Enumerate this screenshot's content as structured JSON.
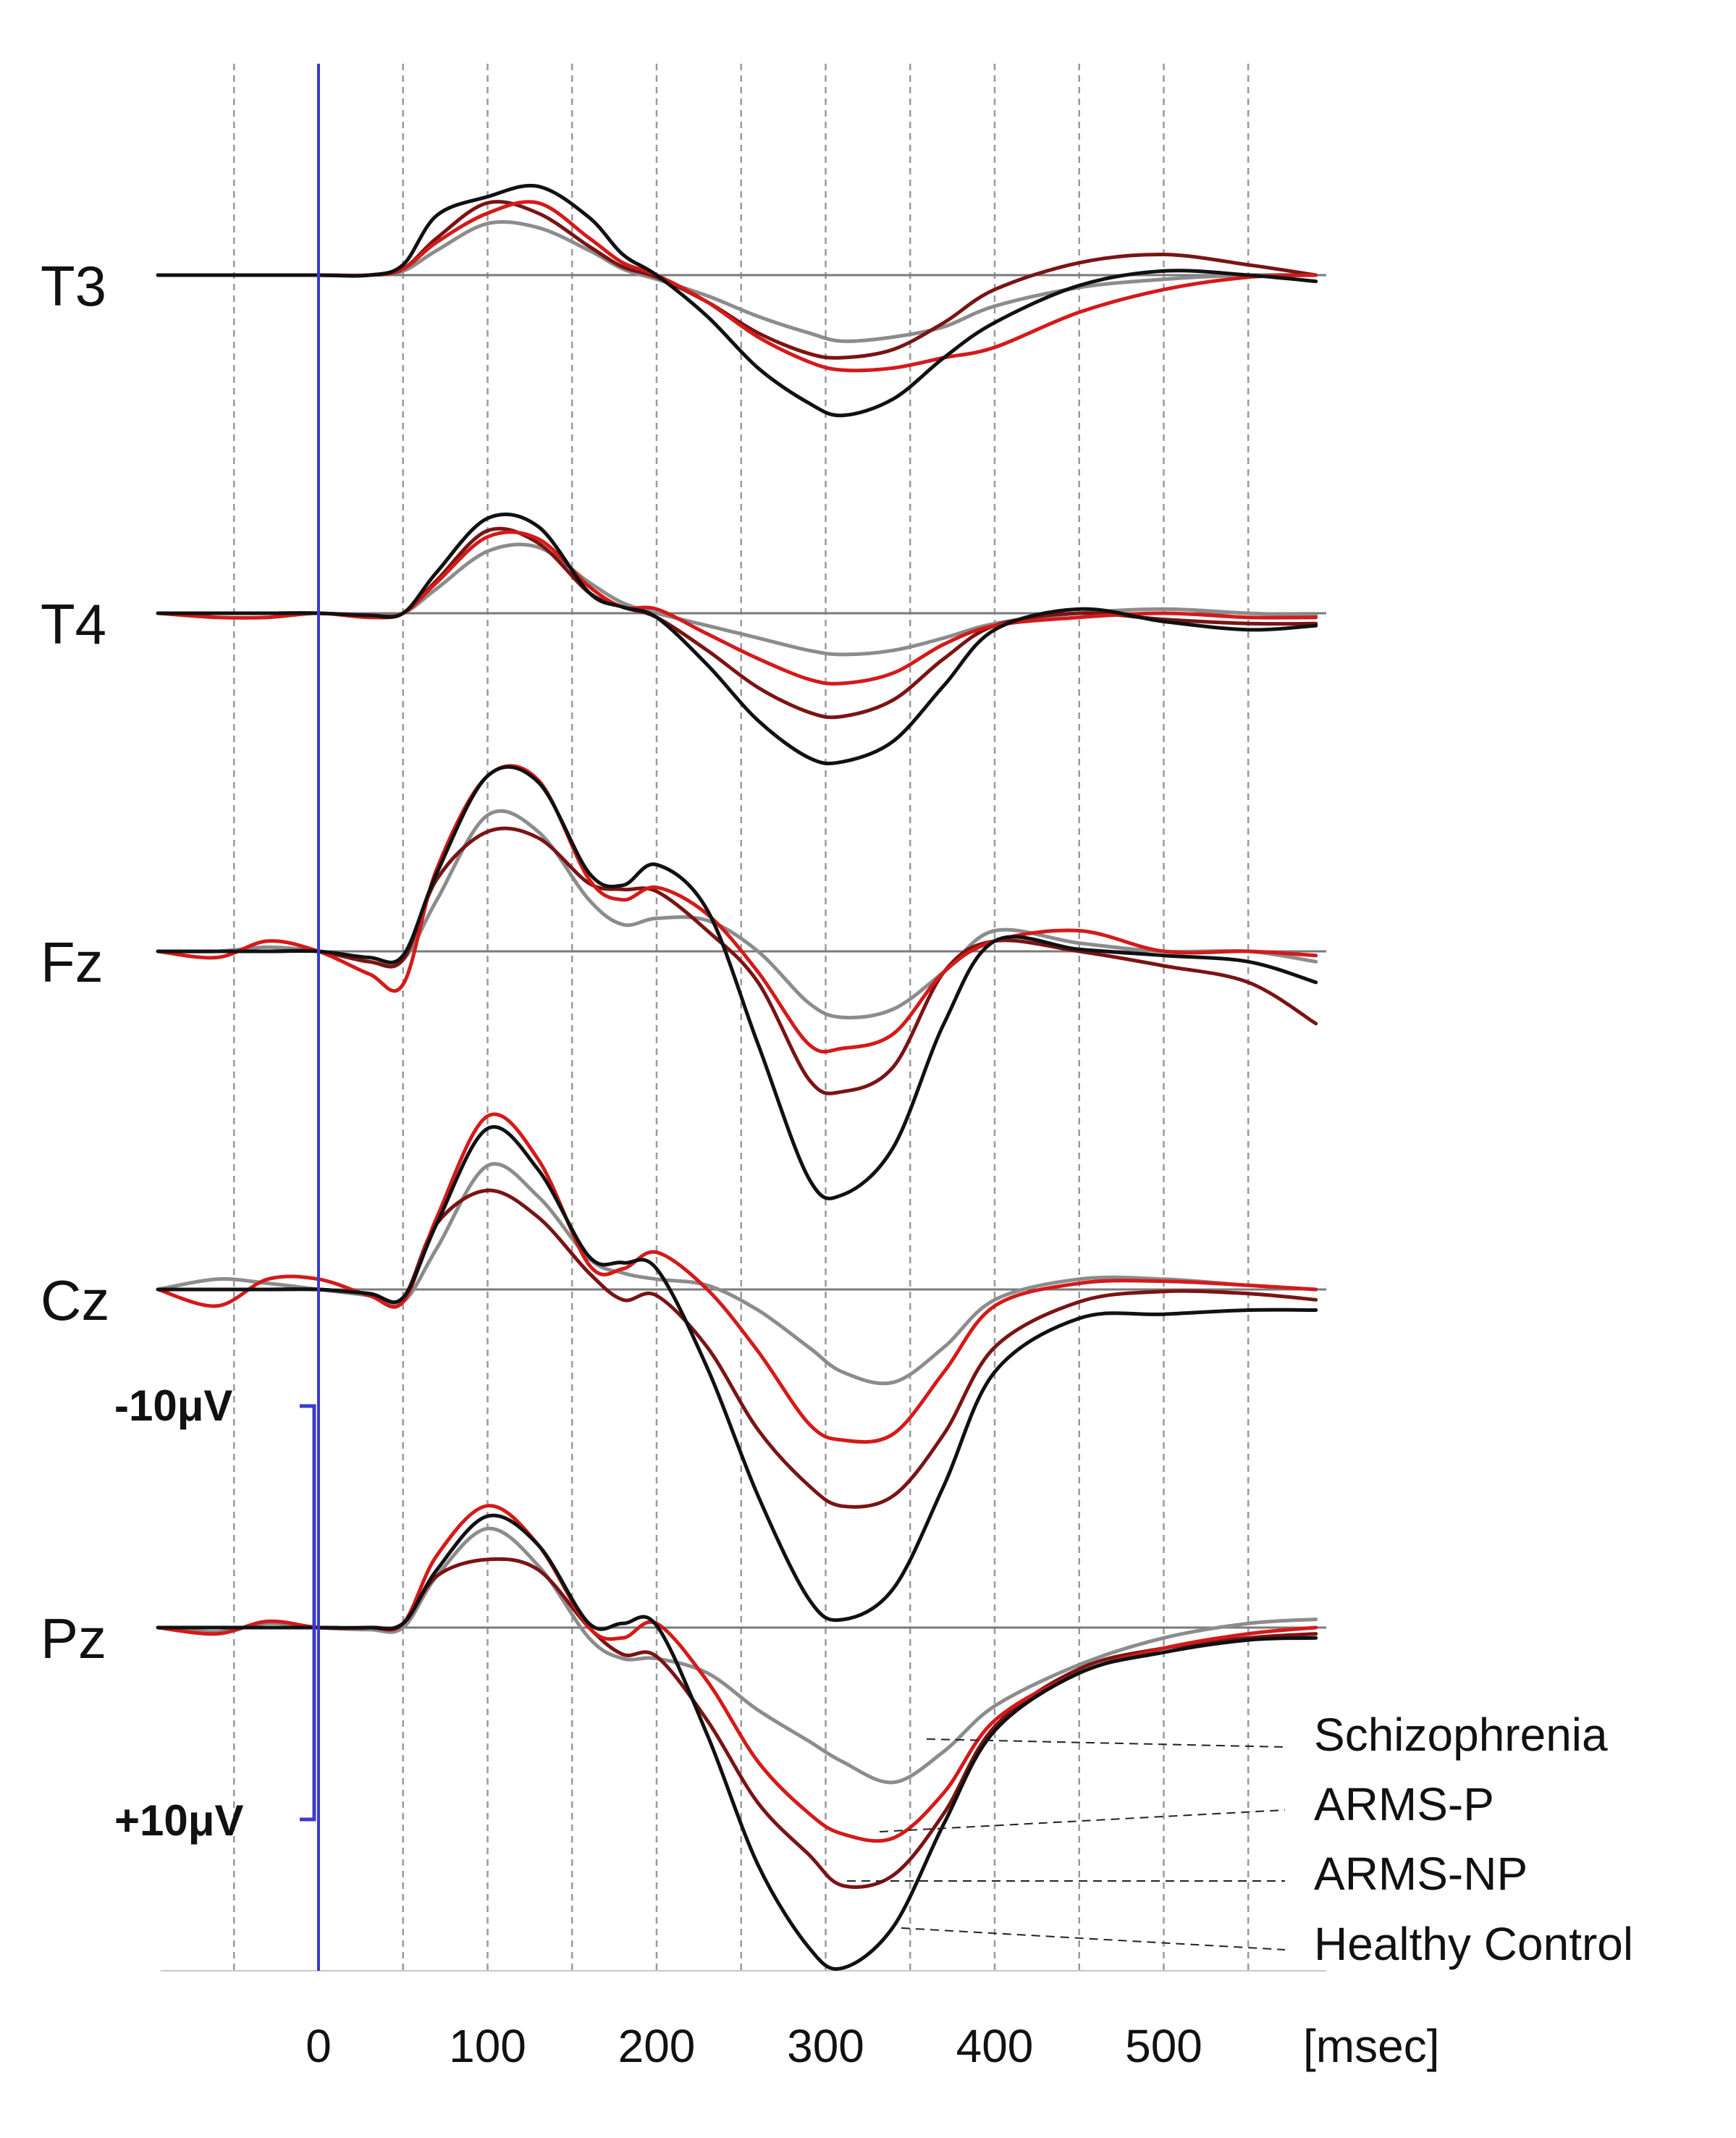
{
  "chart_data": {
    "type": "line",
    "x_unit_label": "[msec]",
    "xlim": [
      -95,
      590
    ],
    "x_ticks": [
      0,
      100,
      200,
      300,
      400,
      500
    ],
    "x_tick_labels": [
      "0",
      "100",
      "200",
      "300",
      "400",
      "500"
    ],
    "grid_x": [
      -50,
      0,
      50,
      100,
      150,
      200,
      250,
      300,
      350,
      400,
      450,
      500,
      550
    ],
    "grid": "vertical dashed",
    "y_orientation": "negative up",
    "scale_bar": {
      "top_label": "-10μV",
      "bottom_label": "+10μV",
      "top_uv": -10,
      "bottom_uv": 10
    },
    "legend_position": "bottom-right",
    "colors": {
      "zero_marker": "#3a3ad0",
      "baseline": "#7a7a7a",
      "grid": "#9a9a9a"
    },
    "x": [
      -95,
      -60,
      -30,
      0,
      30,
      50,
      70,
      100,
      130,
      160,
      180,
      200,
      230,
      260,
      290,
      310,
      340,
      370,
      400,
      450,
      500,
      550,
      590
    ],
    "series": [
      {
        "name": "Schizophrenia",
        "color": "#8c8c8c"
      },
      {
        "name": "ARMS-P",
        "color": "#d41a1a"
      },
      {
        "name": "ARMS-NP",
        "color": "#7a1414"
      },
      {
        "name": "Healthy Control",
        "color": "#111111"
      }
    ],
    "channels": [
      {
        "label": "T3",
        "values": [
          [
            0,
            0,
            0,
            0,
            0,
            -0.2,
            -1.2,
            -2.5,
            -2.3,
            -1.2,
            -0.3,
            0.2,
            1.0,
            2.0,
            2.8,
            3.2,
            3.0,
            2.5,
            1.5,
            0.6,
            0.2,
            0.0,
            0.0
          ],
          [
            0,
            0,
            0,
            0,
            0,
            -0.3,
            -1.6,
            -3.0,
            -3.5,
            -1.8,
            -0.6,
            0.0,
            1.3,
            3.0,
            4.2,
            4.6,
            4.5,
            4.0,
            3.5,
            1.8,
            0.7,
            0.1,
            0.0
          ],
          [
            0,
            0,
            0,
            0,
            0,
            -0.3,
            -1.8,
            -3.5,
            -3.0,
            -1.4,
            -0.4,
            0.1,
            1.3,
            2.8,
            3.8,
            4.0,
            3.6,
            2.3,
            0.7,
            -0.6,
            -1.0,
            -0.5,
            0.0
          ],
          [
            0,
            0,
            0,
            0,
            0,
            -0.5,
            -2.9,
            -3.8,
            -4.3,
            -2.8,
            -1.0,
            0.0,
            2.0,
            4.5,
            6.2,
            6.8,
            6.0,
            4.0,
            2.3,
            0.5,
            -0.2,
            0.0,
            0.3
          ]
        ]
      },
      {
        "label": "T4",
        "values": [
          [
            0,
            0,
            0,
            0,
            0.1,
            0,
            -1.2,
            -3.0,
            -3.2,
            -1.5,
            -0.5,
            0.0,
            0.6,
            1.2,
            1.8,
            2.0,
            1.8,
            1.2,
            0.5,
            0.0,
            -0.2,
            0.0,
            0.1
          ],
          [
            0,
            0.2,
            0.2,
            0,
            0.2,
            0,
            -1.5,
            -3.7,
            -3.6,
            -1.3,
            -0.3,
            -0.2,
            1.0,
            2.2,
            3.2,
            3.4,
            2.9,
            1.5,
            0.6,
            0.2,
            0.0,
            0.2,
            0.2
          ],
          [
            0,
            0,
            0,
            0,
            0.1,
            0,
            -1.6,
            -4.0,
            -3.4,
            -1.0,
            -0.3,
            0.2,
            1.8,
            3.6,
            4.8,
            5.0,
            4.2,
            2.2,
            0.6,
            0.0,
            0.3,
            0.5,
            0.5
          ],
          [
            0,
            0,
            0,
            0,
            0.1,
            0,
            -2.0,
            -4.6,
            -4.2,
            -1.0,
            -0.3,
            0.2,
            2.5,
            5.2,
            7.0,
            7.2,
            6.2,
            3.5,
            0.8,
            -0.2,
            0.4,
            0.8,
            0.6
          ]
        ]
      },
      {
        "label": "Fz",
        "values": [
          [
            0,
            0,
            -0.2,
            0,
            0.5,
            0.4,
            -2.5,
            -6.6,
            -5.8,
            -2.5,
            -1.3,
            -1.6,
            -1.5,
            0.0,
            2.5,
            3.2,
            2.8,
            1.0,
            -1.0,
            -0.4,
            0.0,
            0.0,
            0.5
          ],
          [
            0,
            0.3,
            -0.5,
            0,
            1.1,
            1.6,
            -4.0,
            -8.5,
            -8.3,
            -3.5,
            -2.5,
            -3.1,
            -1.8,
            1.0,
            4.5,
            4.7,
            4.0,
            1.0,
            -0.5,
            -1.0,
            0.0,
            0.0,
            0.2
          ],
          [
            0,
            0,
            0,
            0,
            0.5,
            0.4,
            -3.5,
            -5.8,
            -5.5,
            -3.3,
            -3.0,
            -2.9,
            -1.0,
            1.5,
            6.2,
            6.8,
            5.6,
            1.0,
            -0.5,
            0.0,
            0.7,
            1.5,
            3.5
          ],
          [
            0,
            0,
            0,
            0,
            0.3,
            0.2,
            -3.8,
            -8.5,
            -8.2,
            -3.8,
            -3.2,
            -4.2,
            -2.0,
            4.5,
            11.0,
            11.8,
            9.5,
            3.5,
            -0.5,
            -0.1,
            0.2,
            0.5,
            1.5
          ]
        ]
      },
      {
        "label": "Cz",
        "values": [
          [
            0,
            -0.5,
            -0.3,
            0,
            0.3,
            0.6,
            -2.0,
            -6.0,
            -4.5,
            -1.5,
            -0.8,
            -0.5,
            -0.2,
            1.0,
            2.8,
            4.0,
            4.5,
            2.8,
            0.5,
            -0.5,
            -0.5,
            -0.2,
            0.0
          ],
          [
            0,
            0.8,
            -0.5,
            -0.5,
            0.3,
            0.6,
            -3.5,
            -8.4,
            -6.3,
            -1.2,
            -1.0,
            -1.8,
            0.0,
            3.0,
            6.5,
            7.3,
            7.0,
            4.0,
            0.8,
            -0.3,
            -0.4,
            -0.2,
            0.0
          ],
          [
            0,
            0,
            0,
            0,
            0.2,
            0.4,
            -3.2,
            -4.8,
            -3.5,
            -0.8,
            0.5,
            0.3,
            2.8,
            6.8,
            9.5,
            10.5,
            10.0,
            7.0,
            2.8,
            0.6,
            0.1,
            0.2,
            0.5
          ],
          [
            0,
            0,
            0,
            0,
            0.2,
            0.4,
            -3.2,
            -7.8,
            -5.8,
            -1.6,
            -1.3,
            -1.0,
            3.8,
            10.0,
            15.0,
            16.0,
            14.5,
            9.5,
            4.0,
            1.4,
            1.2,
            1.0,
            1.0
          ]
        ]
      },
      {
        "label": "Pz",
        "values": [
          [
            0,
            0.2,
            -0.2,
            0,
            0.1,
            0,
            -2.5,
            -4.8,
            -3.0,
            0.5,
            1.5,
            1.5,
            2.2,
            4.0,
            5.5,
            6.5,
            7.5,
            6.0,
            3.8,
            1.8,
            0.5,
            -0.2,
            -0.4
          ],
          [
            0,
            0.3,
            -0.3,
            0,
            0,
            -0.2,
            -3.5,
            -5.9,
            -4.0,
            0.0,
            0.5,
            -0.2,
            2.6,
            6.5,
            9.0,
            10.0,
            10.2,
            8.0,
            4.5,
            2.2,
            1.0,
            0.3,
            0.0
          ],
          [
            0,
            0,
            0,
            0,
            0,
            -0.2,
            -2.5,
            -3.3,
            -2.8,
            0.0,
            1.3,
            1.4,
            4.5,
            8.5,
            11.0,
            12.5,
            12.0,
            9.0,
            4.8,
            2.0,
            1.0,
            0.5,
            0.3
          ],
          [
            0,
            0,
            0,
            0,
            0,
            -0.2,
            -2.8,
            -5.4,
            -4.0,
            -0.2,
            -0.2,
            -0.1,
            5.2,
            11.5,
            15.5,
            16.5,
            14.5,
            9.5,
            5.0,
            2.2,
            1.2,
            0.6,
            0.5
          ]
        ]
      }
    ]
  }
}
